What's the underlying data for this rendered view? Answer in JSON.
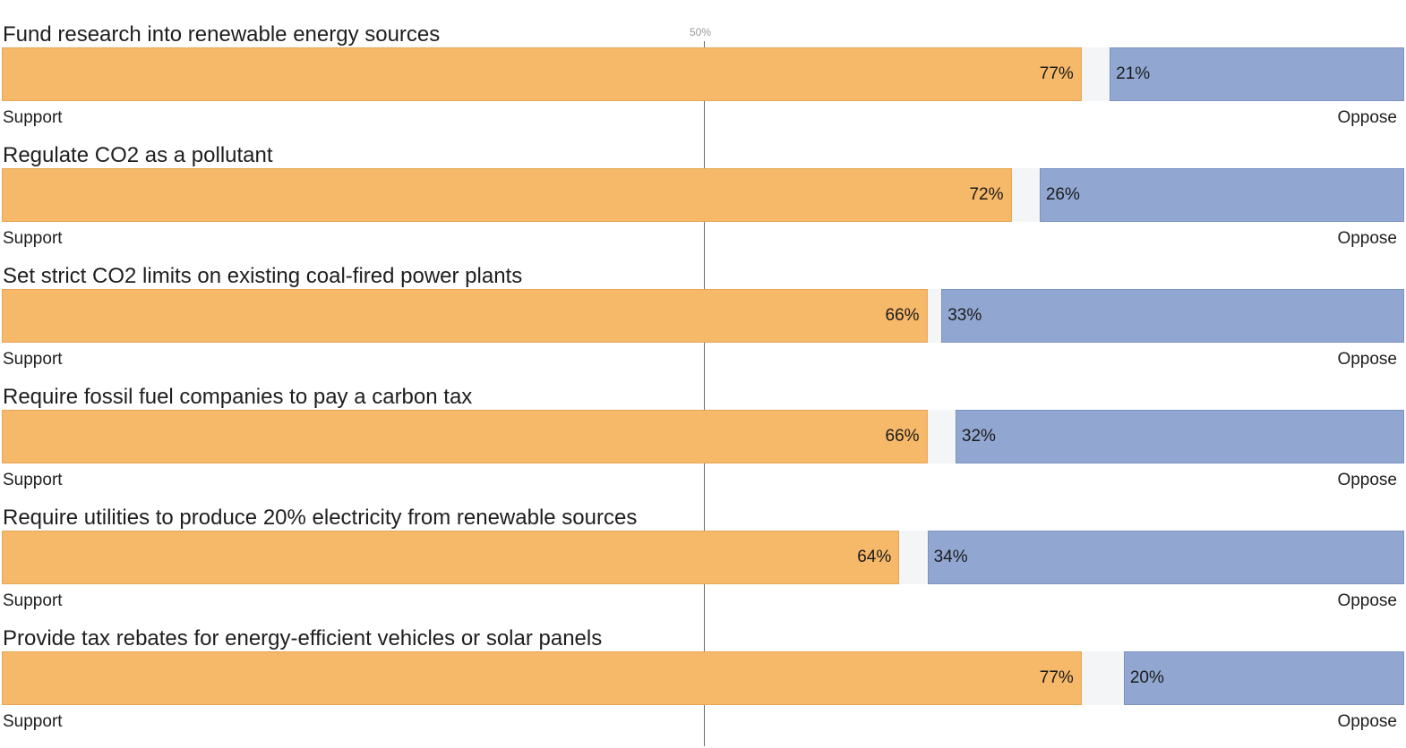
{
  "chart_data": {
    "type": "bar",
    "orientation": "horizontal",
    "stacked": true,
    "title": "",
    "reference_line": {
      "value": 50,
      "label": "50%"
    },
    "end_labels": {
      "left": "Support",
      "right": "Oppose"
    },
    "categories": [
      "Fund research into renewable energy sources",
      "Regulate CO2 as a pollutant",
      "Set strict CO2 limits on existing coal-fired power plants",
      "Require fossil fuel companies to pay a carbon tax",
      "Require utilities to produce 20% electricity from renewable sources",
      "Provide tax rebates for energy-efficient vehicles or solar panels"
    ],
    "series": [
      {
        "key": "support",
        "values": [
          77,
          72,
          66,
          66,
          64,
          77
        ],
        "color": "#f6b869"
      },
      {
        "key": "oppose",
        "values": [
          21,
          26,
          33,
          32,
          34,
          20
        ],
        "color": "#91a7d1"
      }
    ],
    "unit": "%",
    "xlim": [
      0,
      100
    ],
    "grid": false,
    "legend": "none"
  }
}
